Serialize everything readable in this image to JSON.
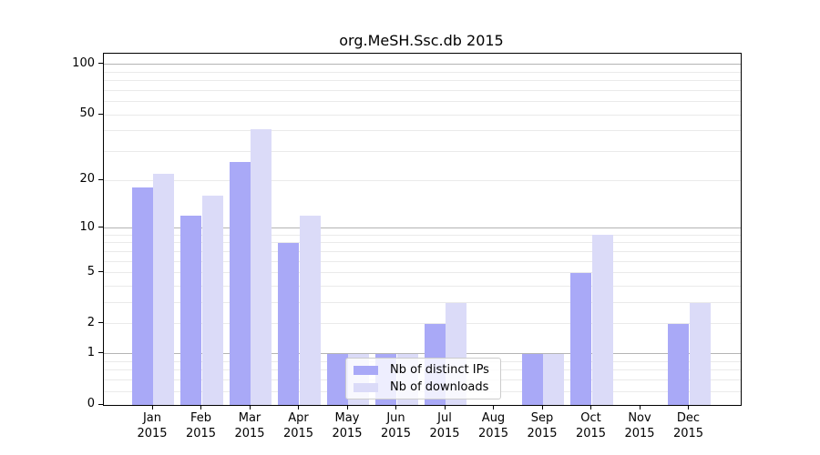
{
  "chart_data": {
    "type": "bar",
    "title": "org.MeSH.Ssc.db 2015",
    "year": "2015",
    "months": [
      "Jan",
      "Feb",
      "Mar",
      "Apr",
      "May",
      "Jun",
      "Jul",
      "Aug",
      "Sep",
      "Oct",
      "Nov",
      "Dec"
    ],
    "series": [
      {
        "name": "Nb of distinct IPs",
        "color": "#a9a9f7",
        "values": [
          18,
          12,
          26,
          8,
          1,
          1,
          2,
          0,
          1,
          5,
          0,
          2
        ]
      },
      {
        "name": "Nb of downloads",
        "color": "#dbdbf8",
        "values": [
          22,
          16,
          41,
          12,
          1,
          1,
          3,
          0,
          1,
          9,
          0,
          3
        ]
      }
    ],
    "y_axis": {
      "scale": "log1p",
      "tick_values": [
        0,
        1,
        2,
        5,
        10,
        20,
        50,
        100
      ],
      "major_gridlines": [
        1,
        10,
        100
      ],
      "minor_gridlines": [
        0.2,
        0.4,
        0.6,
        0.8,
        2,
        3,
        4,
        5,
        6,
        7,
        8,
        9,
        20,
        30,
        40,
        50,
        60,
        70,
        80,
        90
      ],
      "display_max": 116
    },
    "x_axis": {
      "label_format": "month-over-year"
    },
    "legend_position": "lower center",
    "colors": {
      "frame": "#000000",
      "major_grid": "#b4b4b4",
      "minor_grid": "#eaeaea",
      "text": "#000000"
    }
  }
}
